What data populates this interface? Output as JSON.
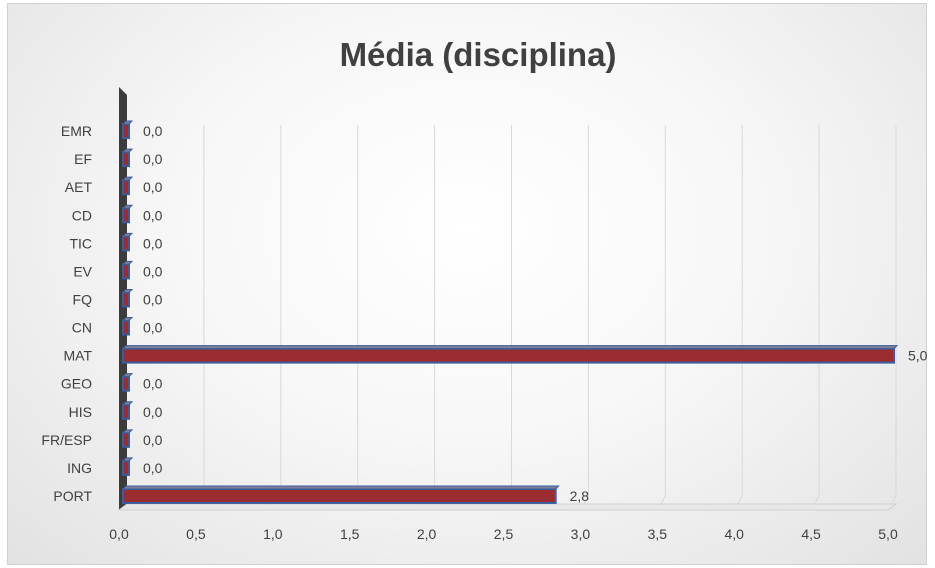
{
  "chart_data": {
    "type": "bar",
    "orientation": "horizontal",
    "title": "Média (disciplina)",
    "categories": [
      "PORT",
      "ING",
      "FR/ESP",
      "HIS",
      "GEO",
      "MAT",
      "CN",
      "FQ",
      "EV",
      "TIC",
      "CD",
      "AET",
      "EF",
      "EMR"
    ],
    "values": [
      2.8,
      0,
      0,
      0,
      0,
      5.0,
      0,
      0,
      0,
      0,
      0,
      0,
      0,
      0
    ],
    "data_labels": [
      "2,8",
      "0,0",
      "0,0",
      "0,0",
      "0,0",
      "5,0",
      "0,0",
      "0,0",
      "0,0",
      "0,0",
      "0,0",
      "0,0",
      "0,0",
      "0,0"
    ],
    "x_ticks": [
      "0,0",
      "0,5",
      "1,0",
      "1,5",
      "2,0",
      "2,5",
      "3,0",
      "3,5",
      "4,0",
      "4,5",
      "5,0"
    ],
    "xlim": [
      0,
      5
    ],
    "grid": true,
    "bar_color": "#9b2d30",
    "bar_edge_color": "#3a5d9c"
  }
}
